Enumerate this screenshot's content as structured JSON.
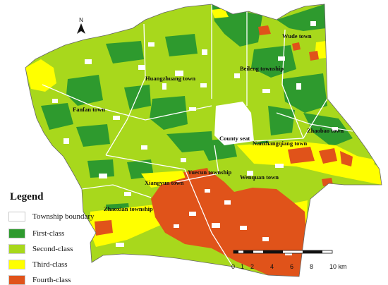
{
  "north_arrow": {
    "label": "N"
  },
  "places": [
    {
      "id": "wude",
      "name": "Wude town"
    },
    {
      "id": "beileng",
      "name": "Beileng township"
    },
    {
      "id": "huangzhuang",
      "name": "Huangzhuang town"
    },
    {
      "id": "fanfan",
      "name": "Fanfan town"
    },
    {
      "id": "county",
      "name": "County seat"
    },
    {
      "id": "zhaobao",
      "name": "Zhaobao town"
    },
    {
      "id": "nanzhang",
      "name": "Nanzhangqiang town"
    },
    {
      "id": "yuecun",
      "name": "Yuecun township"
    },
    {
      "id": "wenquan",
      "name": "Wenquan town"
    },
    {
      "id": "xiangyun",
      "name": "Xiangyun town"
    },
    {
      "id": "zhaoxian",
      "name": "Zhaoxian township"
    }
  ],
  "legend": {
    "title": "Legend",
    "items": [
      {
        "label": "Township boundary",
        "color": "#ffffff"
      },
      {
        "label": "First-class",
        "color": "#2e9a2e"
      },
      {
        "label": "Second-class",
        "color": "#a8d81c"
      },
      {
        "label": "Third-class",
        "color": "#ffff00"
      },
      {
        "label": "Fourth-class",
        "color": "#e0531a"
      }
    ]
  },
  "scale_bar": {
    "ticks": [
      "0",
      "1",
      "2",
      "4",
      "6",
      "8",
      "10 km"
    ]
  }
}
